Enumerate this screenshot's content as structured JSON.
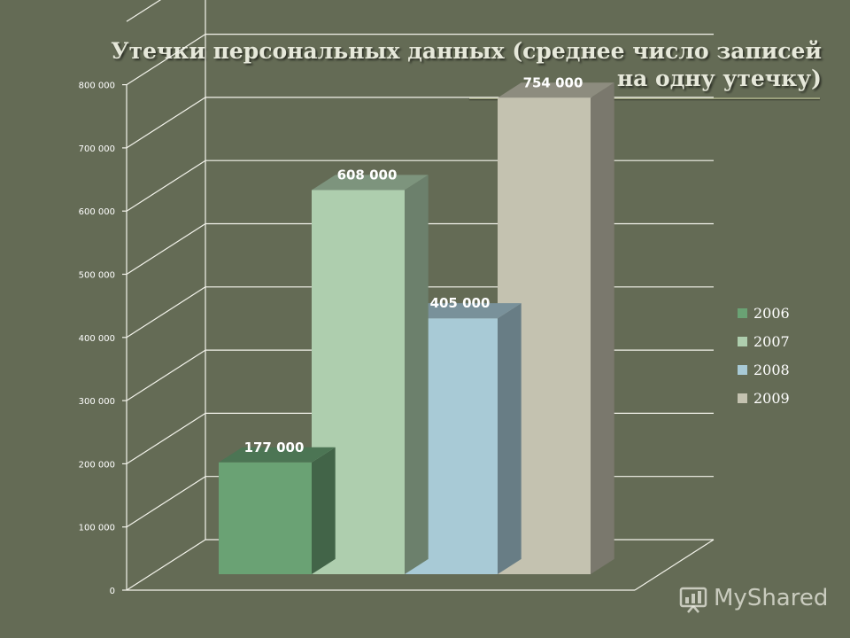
{
  "slide": {
    "title": "Утечки персональных данных (среднее число записей на одну утечку)"
  },
  "chart_data": {
    "type": "bar",
    "title": "",
    "xlabel": "",
    "ylabel": "",
    "ylim": [
      0,
      800000
    ],
    "yticks": [
      0,
      100000,
      200000,
      300000,
      400000,
      500000,
      600000,
      700000,
      800000
    ],
    "ytick_labels": [
      "0",
      "100 000",
      "200 000",
      "300 000",
      "400 000",
      "500 000",
      "600 000",
      "700 000",
      "800 000"
    ],
    "grid": true,
    "three_d": true,
    "legend_position": "right",
    "series": [
      {
        "name": "2006",
        "value": 177000,
        "label": "177 000",
        "color": "#6aa274"
      },
      {
        "name": "2007",
        "value": 608000,
        "label": "608 000",
        "color": "#aeceae"
      },
      {
        "name": "2008",
        "value": 405000,
        "label": "405 000",
        "color": "#a8cad6"
      },
      {
        "name": "2009",
        "value": 754000,
        "label": "754 000",
        "color": "#c4c2b0"
      }
    ]
  },
  "watermark": {
    "text": "MyShared",
    "icon": "presentation-board-icon"
  }
}
